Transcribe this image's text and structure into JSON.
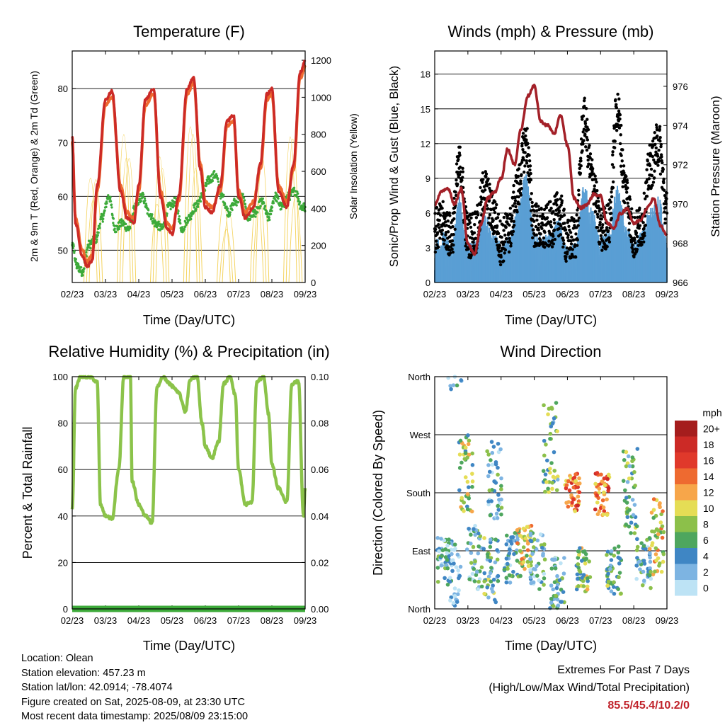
{
  "panels": {
    "temperature": {
      "title": "Temperature (F)",
      "xlabel": "Time (Day/UTC)",
      "ylabel_left": "2m & 9m T (Red, Orange) & 2m Td (Green)",
      "ylabel_right": "Solar Insolation (Yellow)"
    },
    "winds": {
      "title": "Winds (mph) & Pressure (mb)",
      "xlabel": "Time (Day/UTC)",
      "ylabel_left": "Sonic/Prop Wind & Gust (Blue, Black)",
      "ylabel_right": "Station Pressure (Maroon)"
    },
    "humidity": {
      "title": "Relative Humidity (%) & Precipitation (in)",
      "xlabel": "Time (Day/UTC)",
      "ylabel_left": "Percent & Total Rainfall"
    },
    "direction": {
      "title": "Wind Direction",
      "xlabel": "Time (Day/UTC)",
      "ylabel_left": "Direction (Colored By Speed)"
    }
  },
  "colorbar": {
    "unit": "mph",
    "labels": [
      "20+",
      "18",
      "16",
      "14",
      "12",
      "10",
      "8",
      "6",
      "4",
      "2",
      "0"
    ],
    "colors": [
      "#a51d1d",
      "#cc2a26",
      "#e0392b",
      "#ee6a30",
      "#f7a64a",
      "#e5dd55",
      "#8cc04a",
      "#4ea65e",
      "#3f86c4",
      "#7db4e2",
      "#bde3f5"
    ]
  },
  "info": {
    "location": "Location: Olean",
    "elevation": "Station elevation: 457.23 m",
    "latlon": "Station lat/lon: 42.0914; -78.4074",
    "created": "Figure created on Sat, 2025-08-09, at 23:30 UTC",
    "timestamp": "Most recent data timestamp: 2025/08/09 23:15:00"
  },
  "extremes": {
    "title": "Extremes For Past 7 Days",
    "subtitle": "(High/Low/Max Wind/Total Precipitation)",
    "values": "85.5/45.4/10.2/0"
  },
  "chart_data": [
    {
      "type": "line",
      "title": "Temperature (F)",
      "xlabel": "Time (Day/UTC)",
      "ylabel": "2m & 9m T (Red, Orange) & 2m Td (Green)",
      "y2label": "Solar Insolation (Yellow)",
      "x_ticks": [
        "02/23",
        "03/23",
        "04/23",
        "05/23",
        "06/23",
        "07/23",
        "08/23",
        "09/23"
      ],
      "ylim": [
        44,
        87
      ],
      "y_ticks": [
        50,
        60,
        70,
        80
      ],
      "y2lim": [
        0,
        1250
      ],
      "y2_ticks": [
        0,
        200,
        400,
        600,
        800,
        1000,
        1200
      ],
      "series": [
        {
          "name": "2m T",
          "color": "#cc2a26",
          "x": [
            0,
            0.1,
            0.3,
            0.45,
            0.6,
            0.75,
            1.0,
            1.2,
            1.45,
            1.65,
            1.85,
            2.0,
            2.2,
            2.45,
            2.65,
            2.85,
            3.0,
            3.2,
            3.45,
            3.65,
            3.85,
            4.0,
            4.2,
            4.45,
            4.65,
            4.85,
            5.0,
            5.2,
            5.45,
            5.65,
            5.85,
            6.0,
            6.2,
            6.45,
            6.65,
            6.85,
            7.0
          ],
          "y": [
            71,
            55,
            49,
            47,
            48,
            62,
            78,
            79.5,
            61,
            56,
            55,
            62,
            78,
            80,
            60,
            54,
            53,
            60,
            80,
            82,
            65,
            58,
            57,
            62,
            74,
            75,
            60,
            56,
            58,
            66,
            79,
            80,
            61,
            58,
            66,
            83,
            85
          ]
        },
        {
          "name": "9m T",
          "color": "#ee6a30",
          "x": [
            0,
            0.1,
            0.3,
            0.45,
            0.6,
            0.75,
            1.0,
            1.2,
            1.45,
            1.65,
            1.85,
            2.0,
            2.2,
            2.45,
            2.65,
            2.85,
            3.0,
            3.2,
            3.45,
            3.65,
            3.85,
            4.0,
            4.2,
            4.45,
            4.65,
            4.85,
            5.0,
            5.2,
            5.45,
            5.65,
            5.85,
            6.0,
            6.2,
            6.45,
            6.65,
            6.85,
            7.0
          ],
          "y": [
            70,
            56,
            50,
            48,
            49,
            61,
            77,
            78.5,
            62,
            57,
            56,
            61,
            77,
            79,
            61,
            55,
            54,
            59,
            79,
            81,
            66,
            59,
            58,
            61,
            73,
            74,
            61,
            57,
            59,
            65,
            78,
            79,
            62,
            59,
            65,
            82,
            84
          ]
        },
        {
          "name": "2m Td",
          "color": "#3daa3a",
          "x": [
            0,
            0.15,
            0.3,
            0.5,
            0.7,
            0.9,
            1.1,
            1.3,
            1.5,
            1.7,
            1.9,
            2.1,
            2.3,
            2.5,
            2.7,
            2.9,
            3.1,
            3.3,
            3.5,
            3.7,
            3.9,
            4.1,
            4.3,
            4.5,
            4.7,
            4.9,
            5.1,
            5.3,
            5.5,
            5.7,
            5.9,
            6.1,
            6.3,
            6.5,
            6.7,
            6.9,
            7.0
          ],
          "y": [
            51,
            47,
            46,
            51,
            52,
            56,
            60,
            54,
            55,
            54,
            58,
            60,
            57,
            55,
            54,
            58,
            59,
            54,
            56,
            58,
            60,
            63,
            64,
            60,
            57,
            59,
            60,
            56,
            57,
            59,
            56,
            60,
            58,
            60,
            61,
            58,
            58
          ]
        }
      ]
    },
    {
      "type": "line",
      "title": "Winds (mph) & Pressure (mb)",
      "xlabel": "Time (Day/UTC)",
      "ylabel": "Sonic/Prop Wind & Gust (Blue, Black)",
      "y2label": "Station Pressure (Maroon)",
      "x_ticks": [
        "02/23",
        "03/23",
        "04/23",
        "05/23",
        "06/23",
        "07/23",
        "08/23",
        "09/23"
      ],
      "ylim": [
        0,
        20
      ],
      "y_ticks": [
        0,
        3,
        6,
        9,
        12,
        15,
        18
      ],
      "y2lim": [
        966,
        977.8
      ],
      "y2_ticks": [
        966,
        968,
        970,
        972,
        974,
        976
      ],
      "series": [
        {
          "name": "Station Pressure",
          "color": "#a32028",
          "x": [
            0,
            0.2,
            0.4,
            0.6,
            0.8,
            1.0,
            1.2,
            1.4,
            1.6,
            1.8,
            2.0,
            2.2,
            2.4,
            2.6,
            2.8,
            3.0,
            3.2,
            3.4,
            3.6,
            3.8,
            4.0,
            4.2,
            4.4,
            4.6,
            4.8,
            5.0,
            5.2,
            5.4,
            5.6,
            5.8,
            6.0,
            6.2,
            6.4,
            6.6,
            6.8,
            7.0
          ],
          "y": [
            970,
            970.6,
            970.8,
            970,
            970.8,
            968,
            967.4,
            969,
            970.3,
            970.6,
            971.3,
            972.8,
            972,
            973.8,
            975.5,
            976,
            974.2,
            974,
            973.6,
            974.5,
            973,
            970.3,
            969.8,
            970,
            970.5,
            970.4,
            969,
            968.8,
            969.5,
            969.8,
            969,
            969.2,
            969.8,
            970.3,
            968.9,
            968.4
          ]
        },
        {
          "name": "Sonic/Prop Wind",
          "color": "#5a9fd4",
          "x": [
            0,
            0.25,
            0.5,
            0.75,
            1.0,
            1.25,
            1.5,
            1.75,
            2.0,
            2.25,
            2.5,
            2.75,
            3.0,
            3.25,
            3.5,
            3.75,
            4.0,
            4.25,
            4.5,
            4.75,
            5.0,
            5.25,
            5.5,
            5.75,
            6.0,
            6.25,
            6.5,
            6.75,
            7.0
          ],
          "y": [
            2.5,
            3,
            2,
            6,
            2,
            2.5,
            5,
            3,
            2,
            2.5,
            5,
            8,
            3,
            2.5,
            3,
            4,
            1.5,
            2,
            7,
            5,
            2.5,
            3,
            7,
            4,
            2,
            3,
            5,
            6,
            3
          ]
        },
        {
          "name": "Gust",
          "color": "#000000",
          "x": [
            0,
            0.25,
            0.5,
            0.75,
            1.0,
            1.25,
            1.5,
            1.75,
            2.0,
            2.25,
            2.5,
            2.75,
            3.0,
            3.25,
            3.5,
            3.75,
            4.0,
            4.25,
            4.5,
            4.75,
            5.0,
            5.25,
            5.5,
            5.75,
            6.0,
            6.25,
            6.5,
            6.75,
            7.0
          ],
          "y": [
            4.5,
            5,
            4,
            10,
            4,
            4.5,
            8,
            6,
            3.5,
            4.5,
            8,
            12,
            5,
            4.5,
            5,
            6,
            3.5,
            4,
            14,
            9,
            4.5,
            5,
            15,
            8,
            4,
            5,
            10,
            12,
            6
          ]
        }
      ]
    },
    {
      "type": "line",
      "title": "Relative Humidity (%) & Precipitation (in)",
      "xlabel": "Time (Day/UTC)",
      "ylabel": "Percent & Total Rainfall",
      "x_ticks": [
        "02/23",
        "03/23",
        "04/23",
        "05/23",
        "06/23",
        "07/23",
        "08/23",
        "09/23"
      ],
      "ylim": [
        0,
        100
      ],
      "y_ticks": [
        0,
        20,
        40,
        60,
        80,
        100
      ],
      "y2lim": [
        0,
        0.1
      ],
      "y2_ticks": [
        "0.00",
        "0.02",
        "0.04",
        "0.06",
        "0.08",
        "0.10"
      ],
      "series": [
        {
          "name": "Relative Humidity",
          "color": "#8bc34a",
          "x": [
            0,
            0.1,
            0.25,
            0.5,
            0.75,
            0.85,
            1.0,
            1.2,
            1.4,
            1.55,
            1.75,
            1.8,
            2.0,
            2.2,
            2.4,
            2.55,
            2.75,
            2.85,
            3.0,
            3.2,
            3.4,
            3.55,
            3.75,
            3.9,
            4.0,
            4.2,
            4.4,
            4.55,
            4.75,
            4.9,
            5.0,
            5.2,
            5.4,
            5.55,
            5.75,
            5.9,
            6.0,
            6.2,
            6.45,
            6.6,
            6.8,
            6.95,
            7.0
          ],
          "y": [
            43,
            95,
            100,
            100,
            98,
            45,
            40,
            39,
            60,
            100,
            100,
            55,
            45,
            40,
            37,
            96,
            100,
            98,
            96,
            93,
            85,
            99,
            100,
            80,
            70,
            65,
            72,
            97,
            100,
            92,
            60,
            45,
            46,
            98,
            100,
            84,
            62,
            52,
            46,
            97,
            98,
            40,
            52
          ]
        },
        {
          "name": "Total Rainfall",
          "color": "#3daa3a",
          "x": [
            0,
            7
          ],
          "y": [
            0,
            0
          ]
        }
      ]
    },
    {
      "type": "scatter",
      "title": "Wind Direction",
      "xlabel": "Time (Day/UTC)",
      "ylabel": "Direction (Colored By Speed)",
      "x_ticks": [
        "02/23",
        "03/23",
        "04/23",
        "05/23",
        "06/23",
        "07/23",
        "08/23",
        "09/23"
      ],
      "y_ticks": [
        "North",
        "East",
        "South",
        "West",
        "North"
      ],
      "ylim": [
        0,
        360
      ],
      "clusters": [
        {
          "x": 0.3,
          "dir": 75,
          "spread": 35,
          "speed": 2
        },
        {
          "x": 0.6,
          "dir": 40,
          "spread": 60,
          "speed": 1
        },
        {
          "x": 0.95,
          "dir": 210,
          "spread": 60,
          "speed": 4
        },
        {
          "x": 1.2,
          "dir": 80,
          "spread": 50,
          "speed": 2
        },
        {
          "x": 1.7,
          "dir": 60,
          "spread": 50,
          "speed": 3
        },
        {
          "x": 1.8,
          "dir": 200,
          "spread": 60,
          "speed": 2
        },
        {
          "x": 2.3,
          "dir": 80,
          "spread": 40,
          "speed": 2
        },
        {
          "x": 2.7,
          "dir": 90,
          "spread": 40,
          "speed": 5
        },
        {
          "x": 3.1,
          "dir": 75,
          "spread": 45,
          "speed": 2
        },
        {
          "x": 3.5,
          "dir": 250,
          "spread": 70,
          "speed": 3
        },
        {
          "x": 3.7,
          "dir": 40,
          "spread": 40,
          "speed": 2
        },
        {
          "x": 4.15,
          "dir": 180,
          "spread": 30,
          "speed": 7
        },
        {
          "x": 4.5,
          "dir": 60,
          "spread": 35,
          "speed": 4
        },
        {
          "x": 5.05,
          "dir": 180,
          "spread": 35,
          "speed": 7
        },
        {
          "x": 5.4,
          "dir": 60,
          "spread": 40,
          "speed": 3
        },
        {
          "x": 5.9,
          "dir": 180,
          "spread": 70,
          "speed": 3
        },
        {
          "x": 6.3,
          "dir": 70,
          "spread": 40,
          "speed": 2
        },
        {
          "x": 6.7,
          "dir": 110,
          "spread": 60,
          "speed": 5
        }
      ]
    }
  ]
}
